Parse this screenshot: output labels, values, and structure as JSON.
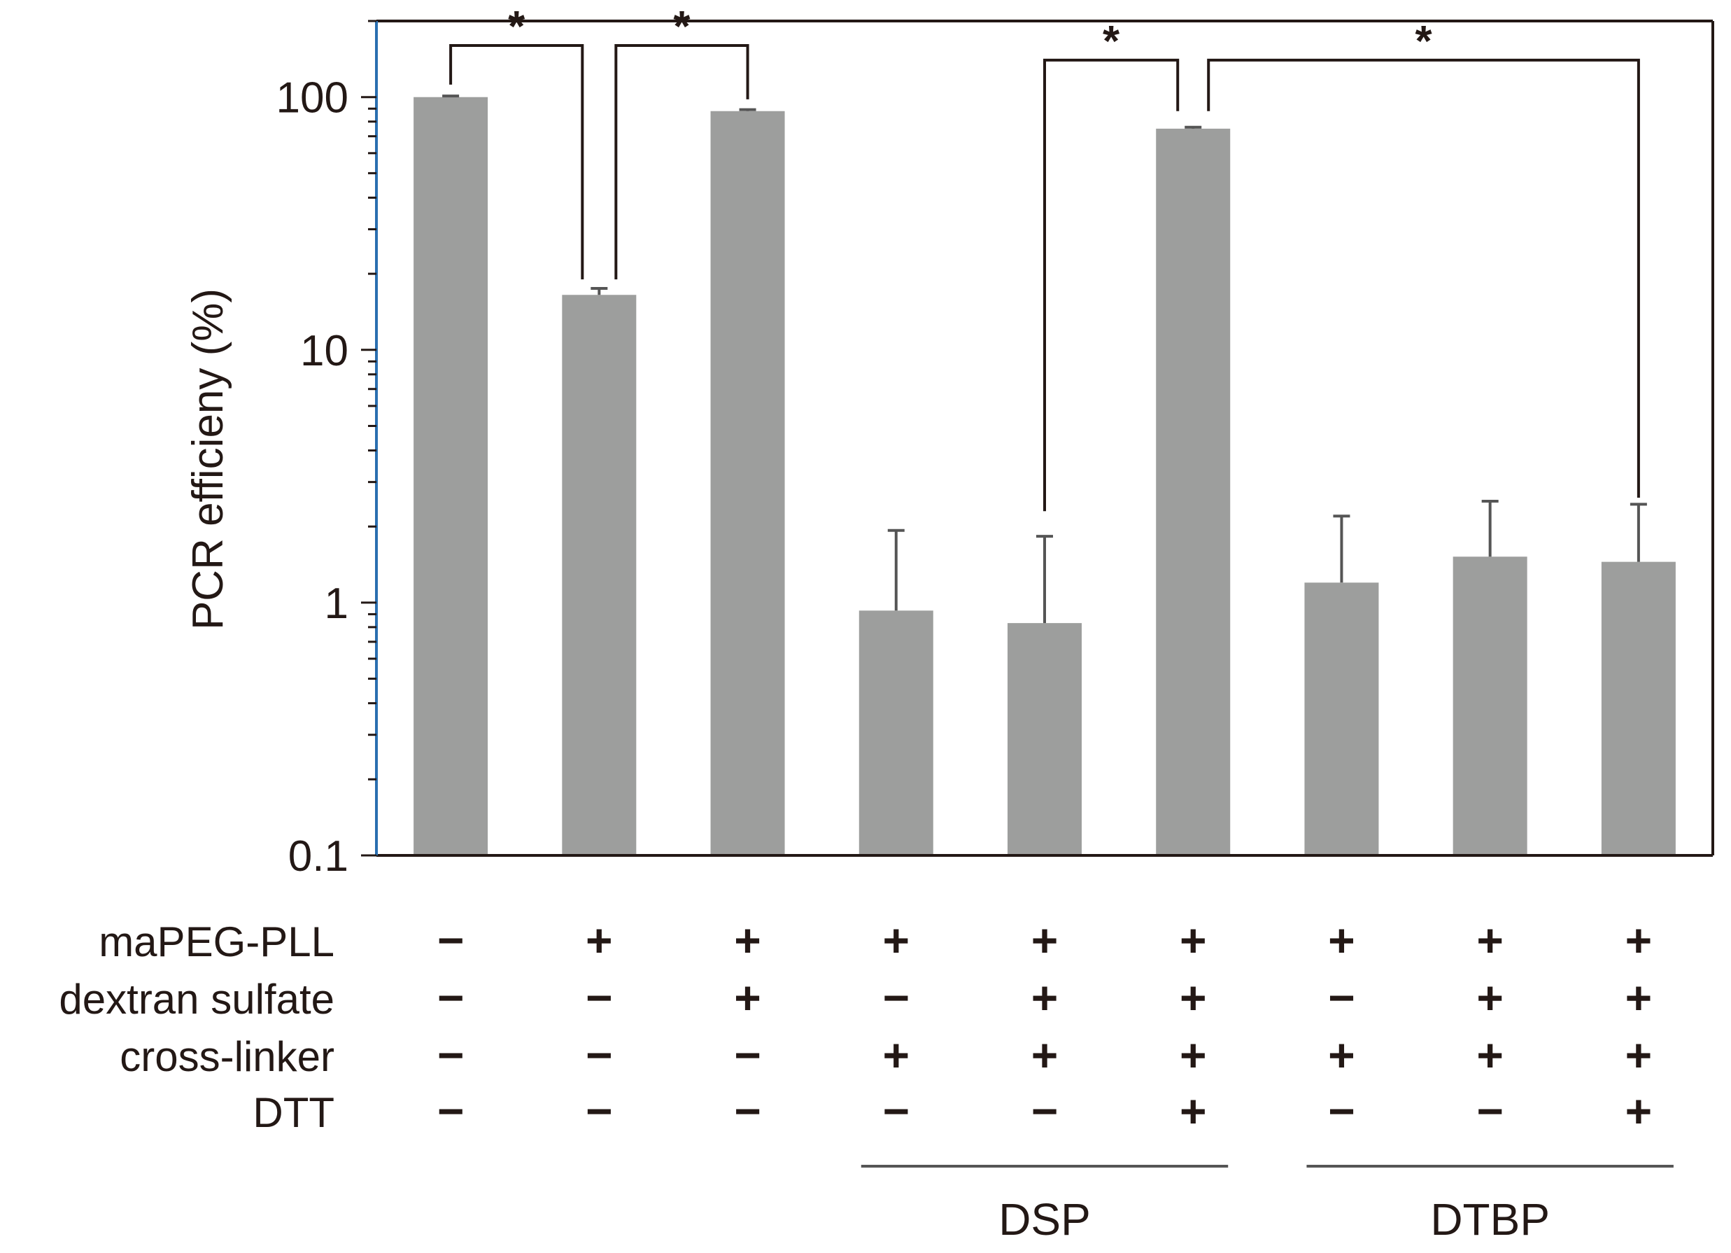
{
  "chart_data": {
    "type": "bar",
    "scale": "log",
    "ylabel": "PCR efficieny (%)",
    "ylim": [
      0.1,
      200
    ],
    "yticks": [
      {
        "value": 0.1,
        "label": "0.1"
      },
      {
        "value": 1,
        "label": "1"
      },
      {
        "value": 10,
        "label": "10"
      },
      {
        "value": 100,
        "label": "100"
      }
    ],
    "colors": {
      "bar": "#9d9e9d",
      "error": "#555555",
      "axis": "#231815",
      "left_axis": "#2a6fb0",
      "text": "#231815"
    },
    "values": [
      100,
      16.5,
      88,
      0.93,
      0.83,
      75,
      1.2,
      1.52,
      1.45
    ],
    "errors": [
      1.0,
      1.0,
      1.2,
      1.0,
      1.0,
      1.0,
      1.0,
      1.0,
      1.0
    ],
    "conditions": [
      {
        "label": "maPEG-PLL",
        "values": [
          "−",
          "+",
          "+",
          "+",
          "+",
          "+",
          "+",
          "+",
          "+"
        ]
      },
      {
        "label": "dextran sulfate",
        "values": [
          "−",
          "−",
          "+",
          "−",
          "+",
          "+",
          "−",
          "+",
          "+"
        ]
      },
      {
        "label": "cross-linker",
        "values": [
          "−",
          "−",
          "−",
          "+",
          "+",
          "+",
          "+",
          "+",
          "+"
        ]
      },
      {
        "label": "DTT",
        "values": [
          "−",
          "−",
          "−",
          "−",
          "−",
          "+",
          "−",
          "−",
          "+"
        ]
      }
    ],
    "groups": [
      {
        "label": "DSP",
        "from": 3,
        "to": 5
      },
      {
        "label": "DTBP",
        "from": 6,
        "to": 8
      }
    ],
    "significance": [
      {
        "from": 0,
        "to": 1,
        "label": "*"
      },
      {
        "from": 1,
        "to": 2,
        "label": "*"
      },
      {
        "from": 4,
        "to": 5,
        "label": "*"
      },
      {
        "from": 5,
        "to": 8,
        "label": "*"
      }
    ]
  }
}
